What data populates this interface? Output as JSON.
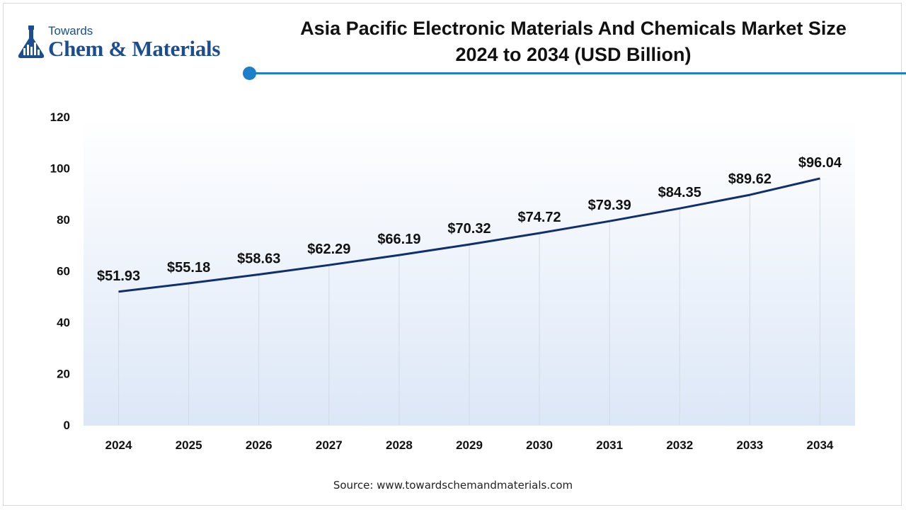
{
  "logo": {
    "line1": "Towards",
    "line2": "Chem & Materials"
  },
  "title_lines": [
    "Asia Pacific Electronic Materials And Chemicals Market Size",
    "2024 to 2034 (USD Billion)"
  ],
  "source": "Source: www.towardschemandmaterials.com",
  "colors": {
    "line": "#0f2f6e",
    "accent": "#1c7fc9",
    "brand": "#1a4e91"
  },
  "chart_data": {
    "type": "line",
    "title": "Asia Pacific Electronic Materials And Chemicals Market Size 2024 to 2034 (USD Billion)",
    "x": [
      "2024",
      "2025",
      "2026",
      "2027",
      "2028",
      "2029",
      "2030",
      "2031",
      "2032",
      "2033",
      "2034"
    ],
    "series": [
      {
        "values": [
          51.93,
          55.18,
          58.63,
          62.29,
          66.19,
          70.32,
          74.72,
          79.39,
          84.35,
          89.62,
          96.04
        ],
        "labels": [
          "$51.93",
          "$55.18",
          "$58.63",
          "$62.29",
          "$66.19",
          "$70.32",
          "$74.72",
          "$79.39",
          "$84.35",
          "$89.62",
          "$96.04"
        ]
      }
    ],
    "ylim": [
      0,
      120
    ],
    "yticks": [
      0,
      20,
      40,
      60,
      80,
      100,
      120
    ],
    "xlabel": "",
    "ylabel": "",
    "grid": "vertical"
  }
}
